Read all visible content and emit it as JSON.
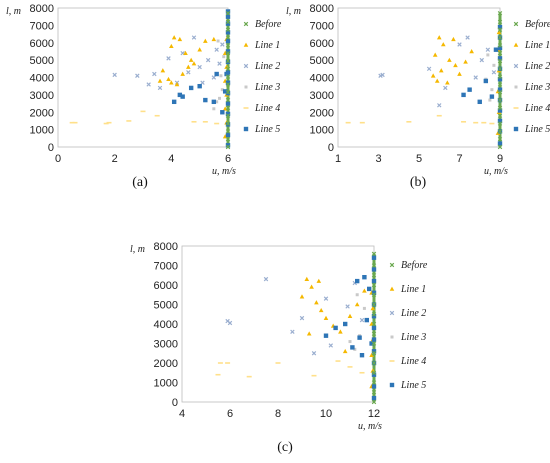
{
  "colors": {
    "Before": "#6aa84f",
    "Line 1": "#f5b800",
    "Line 2": "#9aaecf",
    "Line 3": "#c9c9c9",
    "Line 4": "#ffe08a",
    "Line 5": "#2e75b6"
  },
  "chart_data": [
    {
      "type": "scatter",
      "id": "a",
      "caption": "(a)",
      "xlabel": "u, m/s",
      "ylabel": "l, m",
      "xlim": [
        0,
        6
      ],
      "ylim": [
        0,
        8000
      ],
      "xticks": [
        0,
        2,
        4,
        6
      ],
      "yticks": [
        0,
        1000,
        2000,
        3000,
        4000,
        5000,
        6000,
        7000,
        8000
      ],
      "legend": [
        "Before",
        "Line 1",
        "Line 2",
        "Line 3",
        "Line 4",
        "Line 5"
      ],
      "legend_position": "right",
      "series": [
        {
          "name": "Before",
          "x": [
            6,
            6,
            6,
            6,
            6,
            6,
            6,
            6,
            6,
            6,
            6,
            6,
            6,
            6,
            6,
            6,
            6,
            6
          ],
          "y": [
            0,
            450,
            900,
            1350,
            1800,
            2250,
            2700,
            3150,
            3600,
            4050,
            4500,
            4950,
            5400,
            5850,
            6300,
            6750,
            7200,
            7700
          ]
        },
        {
          "name": "Line 1",
          "x": [
            4.1,
            4.3,
            4.0,
            4.5,
            4.7,
            3.7,
            3.9,
            4.2,
            4.4,
            4.8,
            5.0,
            5.2,
            5.5,
            4.0,
            4.6,
            3.6,
            5.9,
            5.95,
            5.9,
            5.95,
            5.9,
            5.95,
            5.9,
            5.95
          ],
          "y": [
            6300,
            6200,
            5800,
            5400,
            5000,
            4400,
            3900,
            3600,
            4200,
            4800,
            5600,
            6100,
            6200,
            3700,
            4600,
            3800,
            600,
            1400,
            2200,
            3000,
            3800,
            4600,
            5400,
            6200
          ]
        },
        {
          "name": "Line 2",
          "x": [
            2.0,
            2.8,
            3.2,
            3.6,
            4.2,
            4.6,
            5.0,
            5.3,
            5.6,
            3.4,
            3.9,
            4.4,
            4.8,
            5.1,
            5.5,
            5.8,
            5.7
          ],
          "y": [
            4150,
            4100,
            3600,
            3400,
            3700,
            4300,
            4600,
            5000,
            5600,
            4200,
            5100,
            5400,
            6300,
            3700,
            4000,
            5900,
            4800
          ]
        },
        {
          "name": "Line 3",
          "x": [
            5.7,
            5.8,
            5.6,
            5.75,
            5.85,
            5.5,
            5.65
          ],
          "y": [
            2800,
            3300,
            2600,
            4100,
            5200,
            2200,
            6100
          ]
        },
        {
          "name": "Line 4",
          "x": [
            0.5,
            0.6,
            1.7,
            1.8,
            2.5,
            3.0,
            3.5,
            4.8,
            5.2,
            5.6
          ],
          "y": [
            1400,
            1400,
            1350,
            1400,
            1500,
            2050,
            1800,
            1450,
            1450,
            1350
          ]
        },
        {
          "name": "Line 5",
          "x": [
            4.1,
            4.3,
            4.4,
            4.7,
            5.0,
            5.2,
            5.5,
            5.6,
            5.8,
            5.9,
            5.95,
            6,
            6,
            6,
            6,
            6,
            6,
            6,
            6,
            6,
            6,
            6,
            6,
            6,
            6,
            6
          ],
          "y": [
            2600,
            3000,
            2900,
            3400,
            3500,
            2700,
            2600,
            4200,
            2000,
            3200,
            4200,
            100,
            700,
            1300,
            1900,
            2500,
            3100,
            3700,
            4300,
            4900,
            5500,
            6100,
            6600,
            7100,
            7500,
            7800
          ]
        }
      ]
    },
    {
      "type": "scatter",
      "id": "b",
      "caption": "(b)",
      "xlabel": "u, m/s",
      "ylabel": "l, m",
      "xlim": [
        1,
        9
      ],
      "ylim": [
        0,
        8000
      ],
      "xticks": [
        1,
        3,
        5,
        7,
        9
      ],
      "yticks": [
        0,
        1000,
        2000,
        3000,
        4000,
        5000,
        6000,
        7000,
        8000
      ],
      "legend": [
        "Before",
        "Line 1",
        "Line 2",
        "Line 3",
        "Line 4",
        "Line 5"
      ],
      "legend_position": "right",
      "series": [
        {
          "name": "Before",
          "x": [
            9,
            9,
            9,
            9,
            9,
            9,
            9,
            9,
            9,
            9,
            9,
            9,
            9,
            9,
            9,
            9,
            9,
            9
          ],
          "y": [
            0,
            450,
            900,
            1350,
            1800,
            2250,
            2700,
            3150,
            3600,
            4050,
            4500,
            4950,
            5400,
            5850,
            6300,
            6750,
            7200,
            7700
          ]
        },
        {
          "name": "Line 1",
          "x": [
            6.0,
            6.2,
            5.8,
            6.5,
            6.8,
            5.7,
            6.1,
            6.4,
            7.0,
            7.3,
            6.7,
            7.6,
            5.9,
            8.9,
            8.95,
            8.9,
            8.95,
            8.9,
            8.95
          ],
          "y": [
            6300,
            5900,
            5300,
            5000,
            4700,
            4100,
            4400,
            3700,
            4200,
            4900,
            6200,
            5500,
            3800,
            800,
            2000,
            3200,
            4400,
            5600,
            6600
          ]
        },
        {
          "name": "Line 2",
          "x": [
            3.1,
            3.2,
            5.5,
            6.3,
            7.0,
            7.4,
            7.8,
            8.1,
            8.4,
            8.7,
            6.0
          ],
          "y": [
            4100,
            4150,
            4500,
            3400,
            5900,
            6300,
            4000,
            5000,
            5600,
            4300,
            2400
          ]
        },
        {
          "name": "Line 3",
          "x": [
            8.5,
            8.6,
            8.3,
            8.7,
            8.4
          ],
          "y": [
            2700,
            3300,
            3900,
            4700,
            5300
          ]
        },
        {
          "name": "Line 4",
          "x": [
            1.5,
            2.2,
            4.5,
            6.0,
            7.2,
            7.8,
            8.2,
            8.6
          ],
          "y": [
            1400,
            1400,
            1450,
            1800,
            1450,
            1400,
            1400,
            1350
          ]
        },
        {
          "name": "Line 5",
          "x": [
            7.2,
            7.5,
            8.0,
            8.3,
            8.6,
            8.8,
            9,
            9,
            9,
            9,
            9,
            9,
            9,
            9,
            9,
            9,
            9,
            9
          ],
          "y": [
            3000,
            3300,
            2600,
            3800,
            2900,
            5600,
            200,
            900,
            1500,
            2100,
            2700,
            3300,
            3900,
            4500,
            5100,
            5700,
            6300,
            6900
          ]
        }
      ]
    },
    {
      "type": "scatter",
      "id": "c",
      "caption": "(c)",
      "xlabel": "u, m/s",
      "ylabel": "l, m",
      "xlim": [
        4,
        12
      ],
      "ylim": [
        0,
        8000
      ],
      "xticks": [
        4,
        6,
        8,
        10,
        12
      ],
      "yticks": [
        0,
        1000,
        2000,
        3000,
        4000,
        5000,
        6000,
        7000,
        8000
      ],
      "legend": [
        "Before",
        "Line 1",
        "Line 2",
        "Line 3",
        "Line 4",
        "Line 5"
      ],
      "legend_position": "right",
      "series": [
        {
          "name": "Before",
          "x": [
            12,
            12,
            12,
            12,
            12,
            12,
            12,
            12,
            12,
            12,
            12,
            12,
            12,
            12,
            12,
            12
          ],
          "y": [
            0,
            500,
            1000,
            1500,
            2000,
            2500,
            3000,
            3500,
            4000,
            4500,
            5000,
            5500,
            6000,
            6500,
            7000,
            7600
          ]
        },
        {
          "name": "Line 1",
          "x": [
            9.2,
            9.4,
            9.0,
            9.6,
            9.8,
            10.0,
            10.3,
            10.6,
            11.0,
            11.3,
            11.6,
            9.3,
            9.7,
            10.8,
            11.9,
            11.95,
            11.9,
            11.95,
            11.9,
            11.95,
            11.9
          ],
          "y": [
            6300,
            5900,
            5400,
            5100,
            4700,
            4300,
            3900,
            3600,
            4400,
            5000,
            5700,
            3500,
            6200,
            2600,
            800,
            1600,
            2400,
            3200,
            4000,
            4800,
            5600
          ]
        },
        {
          "name": "Line 2",
          "x": [
            5.9,
            6.0,
            7.5,
            8.6,
            9.0,
            9.5,
            10.0,
            10.4,
            10.9,
            11.2,
            11.5,
            10.2
          ],
          "y": [
            4150,
            4050,
            6300,
            3600,
            4300,
            2500,
            5300,
            3800,
            4900,
            6100,
            4200,
            2900
          ]
        },
        {
          "name": "Line 3",
          "x": [
            11.2,
            11.4,
            11.0,
            11.6,
            11.3
          ],
          "y": [
            2700,
            3400,
            3100,
            4800,
            5500
          ]
        },
        {
          "name": "Line 4",
          "x": [
            5.5,
            5.6,
            5.9,
            6.8,
            8.0,
            9.5,
            10.5,
            11.0,
            11.5
          ],
          "y": [
            1400,
            2000,
            2000,
            1300,
            2000,
            1350,
            2100,
            1800,
            1500
          ]
        },
        {
          "name": "Line 5",
          "x": [
            10.0,
            10.4,
            10.8,
            11.1,
            11.4,
            11.7,
            11.8,
            11.6,
            11.3,
            11.5,
            11.9,
            12,
            12,
            12,
            12,
            12,
            12,
            12,
            12,
            12,
            12,
            12,
            12,
            12
          ],
          "y": [
            3400,
            3800,
            4000,
            2800,
            3300,
            4200,
            5800,
            6400,
            6200,
            2400,
            3000,
            200,
            800,
            1400,
            2000,
            2600,
            3200,
            3800,
            4400,
            5000,
            5600,
            6200,
            6800,
            7400
          ]
        }
      ]
    }
  ]
}
